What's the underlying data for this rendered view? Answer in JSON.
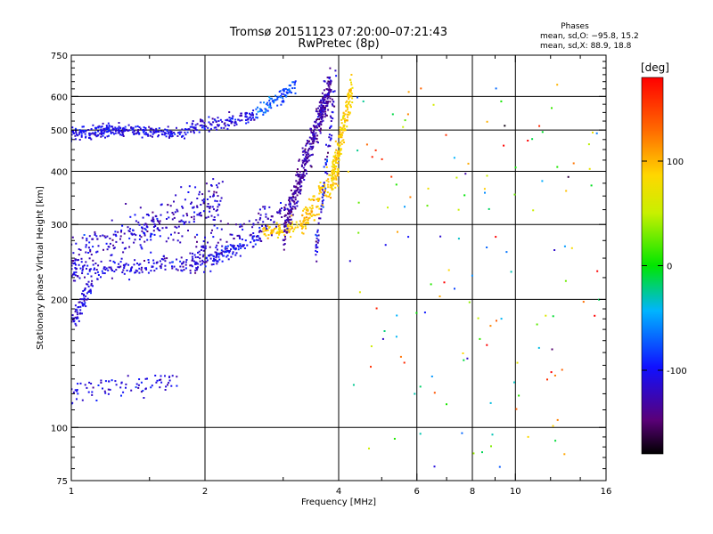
{
  "chart_data": {
    "type": "scatter",
    "title": "Tromsø 20151123 07:20:00–07:21:43",
    "subtitle": "RwPretec (8p)",
    "xlabel": "Frequency [MHz]",
    "ylabel": "Stationary phase Virtual Height [km]",
    "xscale": "log",
    "yscale": "log",
    "xlim": [
      1,
      16
    ],
    "ylim": [
      75,
      750
    ],
    "grid": true,
    "xticks": [
      1,
      2,
      4,
      6,
      8,
      10,
      16
    ],
    "xtick_labels": [
      "1",
      "2",
      "4",
      "6",
      "8",
      "10",
      "16"
    ],
    "xgrid": [
      2,
      4,
      6,
      8,
      10
    ],
    "xminor": [
      1.5,
      3,
      5,
      7,
      9,
      12,
      14
    ],
    "yticks": [
      75,
      100,
      200,
      300,
      400,
      500,
      600,
      750
    ],
    "ytick_labels": [
      "75",
      "100",
      "200",
      "300",
      "400",
      "500",
      "600",
      "750"
    ],
    "ygrid": [
      100,
      200,
      300,
      400,
      500,
      600
    ],
    "yminor": [
      80,
      85,
      90,
      95,
      110,
      120,
      130,
      140,
      150,
      160,
      170,
      180,
      190,
      225,
      250,
      275,
      325,
      350,
      375,
      425,
      450,
      475,
      525,
      550,
      575,
      625,
      650,
      675,
      700,
      725
    ],
    "info": {
      "heading": "Phases",
      "line1": "mean, sd,O: −95.8, 15.2",
      "line2": "mean, sd,X:  88.9, 18.8"
    },
    "colorbar": {
      "label": "[deg]",
      "range": [
        -180,
        180
      ],
      "ticks": [
        -100,
        0,
        100
      ],
      "tick_labels": [
        "-100",
        "0",
        "100"
      ]
    },
    "series": [
      {
        "f0": 1.0,
        "f1": 1.22,
        "h0": 490,
        "h1": 500,
        "noise": 0.018,
        "phase": -105,
        "sd": 12,
        "n": 110
      },
      {
        "f0": 1.22,
        "f1": 1.8,
        "h0": 500,
        "h1": 492,
        "noise": 0.016,
        "phase": -108,
        "sd": 10,
        "n": 150
      },
      {
        "f0": 1.8,
        "f1": 2.6,
        "h0": 500,
        "h1": 540,
        "noise": 0.018,
        "phase": -110,
        "sd": 12,
        "n": 130
      },
      {
        "f0": 2.6,
        "f1": 3.2,
        "h0": 545,
        "h1": 640,
        "noise": 0.02,
        "phase": -75,
        "sd": 12,
        "n": 90
      },
      {
        "f0": 1.0,
        "f1": 2.0,
        "h0": 232,
        "h1": 245,
        "noise": 0.025,
        "phase": -112,
        "sd": 12,
        "n": 170
      },
      {
        "f0": 2.0,
        "f1": 2.7,
        "h0": 245,
        "h1": 285,
        "noise": 0.02,
        "phase": -100,
        "sd": 12,
        "n": 110
      },
      {
        "f0": 2.7,
        "f1": 3.3,
        "h0": 285,
        "h1": 300,
        "noise": 0.02,
        "phase": 90,
        "sd": 12,
        "n": 80
      },
      {
        "f0": 3.3,
        "f1": 4.0,
        "h0": 300,
        "h1": 400,
        "noise": 0.04,
        "phase": 95,
        "sd": 10,
        "n": 150
      },
      {
        "f0": 3.85,
        "f1": 4.3,
        "h0": 380,
        "h1": 640,
        "noise": 0.05,
        "phase": 88,
        "sd": 10,
        "n": 180
      },
      {
        "f0": 1.0,
        "f1": 2.2,
        "h0": 250,
        "h1": 345,
        "noise": 0.06,
        "phase": -115,
        "sd": 14,
        "n": 300
      },
      {
        "f0": 1.85,
        "f1": 3.0,
        "h0": 250,
        "h1": 320,
        "noise": 0.05,
        "phase": -118,
        "sd": 14,
        "n": 120
      },
      {
        "f0": 3.0,
        "f1": 3.85,
        "h0": 290,
        "h1": 650,
        "noise": 0.05,
        "phase": -128,
        "sd": 12,
        "n": 420
      },
      {
        "f0": 3.55,
        "f1": 3.95,
        "h0": 250,
        "h1": 640,
        "noise": 0.05,
        "phase": -105,
        "sd": 20,
        "n": 80
      },
      {
        "f0": 1.0,
        "f1": 1.12,
        "h0": 175,
        "h1": 220,
        "noise": 0.03,
        "phase": -110,
        "sd": 12,
        "n": 70
      },
      {
        "f0": 1.0,
        "f1": 1.75,
        "h0": 120,
        "h1": 130,
        "noise": 0.03,
        "phase": -108,
        "sd": 12,
        "n": 80
      },
      {
        "f0": 4.2,
        "f1": 15.5,
        "h0": 80,
        "h1": 650,
        "noise": 0.0,
        "phase": 40,
        "sd": 90,
        "n": 140
      }
    ]
  }
}
